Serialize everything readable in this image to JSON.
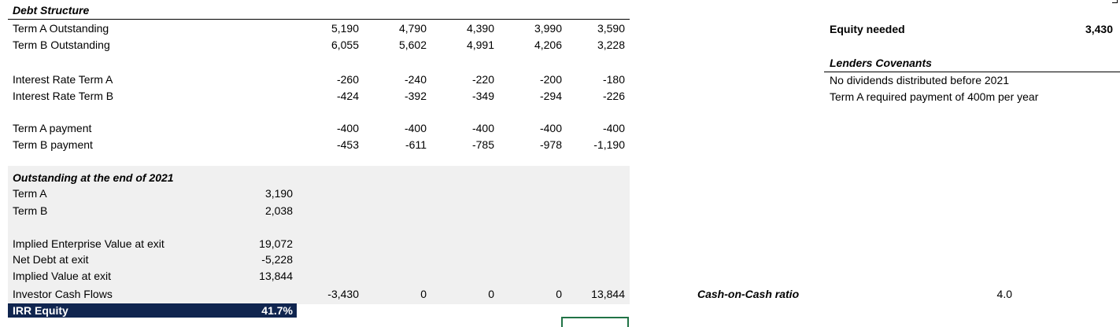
{
  "debt_structure": {
    "title": "Debt Structure",
    "rows": [
      {
        "label": "Term A Outstanding",
        "values": [
          "5,190",
          "4,790",
          "4,390",
          "3,990",
          "3,590"
        ]
      },
      {
        "label": "Term B Outstanding",
        "values": [
          "6,055",
          "5,602",
          "4,991",
          "4,206",
          "3,228"
        ]
      },
      {
        "label": "Interest Rate Term A",
        "values": [
          "-260",
          "-240",
          "-220",
          "-200",
          "-180"
        ]
      },
      {
        "label": "Interest Rate Term B",
        "values": [
          "-424",
          "-392",
          "-349",
          "-294",
          "-226"
        ]
      },
      {
        "label": "Term A payment",
        "values": [
          "-400",
          "-400",
          "-400",
          "-400",
          "-400"
        ]
      },
      {
        "label": "Term B payment",
        "values": [
          "-453",
          "-611",
          "-785",
          "-978",
          "-1,190"
        ]
      }
    ]
  },
  "outstanding": {
    "title": "Outstanding at the end of 2021",
    "term_a_label": "Term A",
    "term_a_value": "3,190",
    "term_b_label": "Term B",
    "term_b_value": "2,038",
    "ev_label": "Implied Enterprise Value at exit",
    "ev_value": "19,072",
    "net_debt_label": "Net Debt at exit",
    "net_debt_value": "-5,228",
    "implied_label": "Implied Value at exit",
    "implied_value": "13,844",
    "cash_flows_label": "Investor Cash Flows",
    "cash_flows": [
      "-3,430",
      "0",
      "0",
      "0",
      "13,844"
    ],
    "irr_label": "IRR Equity",
    "irr_value": "41.7%"
  },
  "right_panel": {
    "equity_label": "Equity needed",
    "equity_value": "3,430",
    "covenants_title": "Lenders Covenants",
    "covenant_1": "No dividends distributed before 2021",
    "covenant_2": "Term A required payment of 400m per year",
    "coc_label": "Cash-on-Cash ratio",
    "coc_value": "4.0"
  },
  "colors": {
    "header_bar": "#10254f",
    "section_bg": "#f0f0f0",
    "selection": "#217346"
  }
}
